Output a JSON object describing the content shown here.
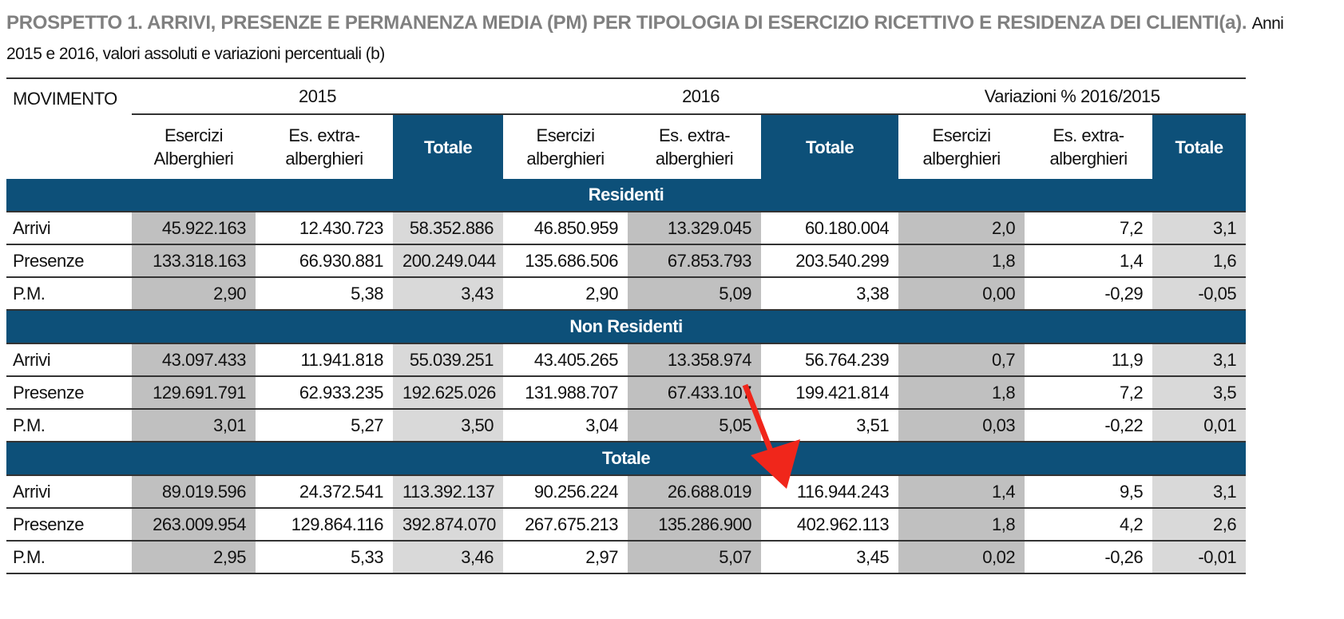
{
  "title": {
    "main": "PROSPETTO 1. ARRIVI, PRESENZE E PERMANENZA MEDIA (PM) PER TIPOLOGIA DI ESERCIZIO RICETTIVO E RESIDENZA DEI CLIENTI(a).",
    "sub": "Anni 2015 e 2016, valori assoluti e variazioni percentuali (b)"
  },
  "header": {
    "movimento": "MOVIMENTO",
    "groups": [
      "2015",
      "2016",
      "Variazioni % 2016/2015"
    ],
    "cols": [
      [
        "Esercizi",
        "Alberghieri"
      ],
      [
        "Es. extra-",
        "alberghieri"
      ],
      [
        "Totale",
        ""
      ],
      [
        "Esercizi",
        "alberghieri"
      ],
      [
        "Es. extra-",
        "alberghieri"
      ],
      [
        "Totale",
        ""
      ],
      [
        "Esercizi",
        "alberghieri"
      ],
      [
        "Es. extra-",
        "alberghieri"
      ],
      [
        "Totale",
        ""
      ]
    ]
  },
  "sections": [
    {
      "name": "Residenti",
      "rows": [
        {
          "label": "Arrivi",
          "values": [
            "45.922.163",
            "12.430.723",
            "58.352.886",
            "46.850.959",
            "13.329.045",
            "60.180.004",
            "2,0",
            "7,2",
            "3,1"
          ]
        },
        {
          "label": "Presenze",
          "values": [
            "133.318.163",
            "66.930.881",
            "200.249.044",
            "135.686.506",
            "67.853.793",
            "203.540.299",
            "1,8",
            "1,4",
            "1,6"
          ]
        },
        {
          "label": "P.M.",
          "values": [
            "2,90",
            "5,38",
            "3,43",
            "2,90",
            "5,09",
            "3,38",
            "0,00",
            "-0,29",
            "-0,05"
          ]
        }
      ]
    },
    {
      "name": "Non Residenti",
      "rows": [
        {
          "label": "Arrivi",
          "values": [
            "43.097.433",
            "11.941.818",
            "55.039.251",
            "43.405.265",
            "13.358.974",
            "56.764.239",
            "0,7",
            "11,9",
            "3,1"
          ]
        },
        {
          "label": "Presenze",
          "values": [
            "129.691.791",
            "62.933.235",
            "192.625.026",
            "131.988.707",
            "67.433.107",
            "199.421.814",
            "1,8",
            "7,2",
            "3,5"
          ]
        },
        {
          "label": "P.M.",
          "values": [
            "3,01",
            "5,27",
            "3,50",
            "3,04",
            "5,05",
            "3,51",
            "0,03",
            "-0,22",
            "0,01"
          ]
        }
      ]
    },
    {
      "name": "Totale",
      "rows": [
        {
          "label": "Arrivi",
          "values": [
            "89.019.596",
            "24.372.541",
            "113.392.137",
            "90.256.224",
            "26.688.019",
            "116.944.243",
            "1,4",
            "9,5",
            "3,1"
          ]
        },
        {
          "label": "Presenze",
          "values": [
            "263.009.954",
            "129.864.116",
            "392.874.070",
            "267.675.213",
            "135.286.900",
            "402.962.113",
            "1,8",
            "4,2",
            "2,6"
          ]
        },
        {
          "label": "P.M.",
          "values": [
            "2,95",
            "5,33",
            "3,46",
            "2,97",
            "5,07",
            "3,45",
            "0,02",
            "-0,26",
            "-0,01"
          ]
        }
      ]
    }
  ],
  "colors": {
    "header_blue": "#0d5079",
    "shade_dark": "#c0c0c0",
    "shade_light": "#d9d9d9",
    "arrow": "#f0261b"
  }
}
